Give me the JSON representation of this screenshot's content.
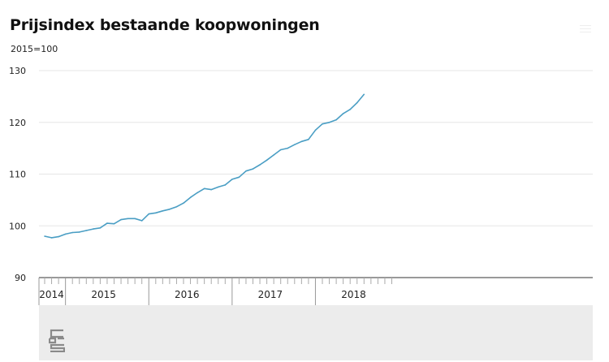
{
  "header": {
    "title": "Prijsindex bestaande koopwoningen",
    "subtitle": "2015=100"
  },
  "icons": {
    "menu": "hamburger-menu-icon",
    "logo": "cbs-logo"
  },
  "colors": {
    "line": "#4a9ec4",
    "grid": "#e6e6e6",
    "axis": "#333333",
    "footer_bg": "#ececec"
  },
  "chart_data": {
    "type": "line",
    "title": "Prijsindex bestaande koopwoningen",
    "subtitle": "2015=100",
    "xlabel": "",
    "ylabel": "",
    "ylim": [
      90,
      130
    ],
    "yticks": [
      90,
      100,
      110,
      120,
      130
    ],
    "grid": true,
    "xlim_months": [
      "2014-10",
      "2018-12"
    ],
    "year_labels": [
      {
        "label": "2014",
        "from": "2014-10",
        "to": "2014-12"
      },
      {
        "label": "2015",
        "from": "2015-01",
        "to": "2015-12"
      },
      {
        "label": "2016",
        "from": "2016-01",
        "to": "2016-12"
      },
      {
        "label": "2017",
        "from": "2017-01",
        "to": "2017-12"
      },
      {
        "label": "2018",
        "from": "2018-01",
        "to": "2018-12"
      }
    ],
    "series": [
      {
        "x": [
          "2014-10",
          "2014-11",
          "2014-12",
          "2015-01",
          "2015-02",
          "2015-03",
          "2015-04",
          "2015-05",
          "2015-06",
          "2015-07",
          "2015-08",
          "2015-09",
          "2015-10",
          "2015-11",
          "2015-12",
          "2016-01",
          "2016-02",
          "2016-03",
          "2016-04",
          "2016-05",
          "2016-06",
          "2016-07",
          "2016-08",
          "2016-09",
          "2016-10",
          "2016-11",
          "2016-12",
          "2017-01",
          "2017-02",
          "2017-03",
          "2017-04",
          "2017-05",
          "2017-06",
          "2017-07",
          "2017-08",
          "2017-09",
          "2017-10",
          "2017-11",
          "2017-12",
          "2018-01",
          "2018-02",
          "2018-03",
          "2018-04",
          "2018-05",
          "2018-06",
          "2018-07",
          "2018-08"
        ],
        "values": [
          98.0,
          97.7,
          97.9,
          98.4,
          98.7,
          98.8,
          99.1,
          99.4,
          99.6,
          100.5,
          100.4,
          101.2,
          101.4,
          101.4,
          101.0,
          102.3,
          102.5,
          102.9,
          103.2,
          103.7,
          104.4,
          105.5,
          106.4,
          107.2,
          107.0,
          107.5,
          107.9,
          109.0,
          109.4,
          110.6,
          111.0,
          111.8,
          112.7,
          113.7,
          114.7,
          115.0,
          115.7,
          116.3,
          116.7,
          118.5,
          119.7,
          120.0,
          120.5,
          121.7,
          122.5,
          123.8,
          125.4
        ]
      }
    ]
  }
}
